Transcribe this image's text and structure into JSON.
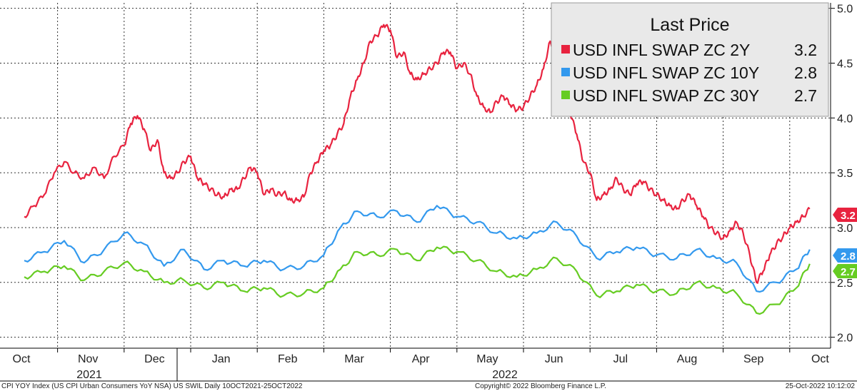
{
  "footer": {
    "left": "CPI YOY Index (US CPI Urban Consumers YoY NSA) US SWIL  Daily 10OCT2021-25OCT2022",
    "center": "Copyright© 2022 Bloomberg Finance L.P.",
    "right": "25-Oct-2022 10:12:02"
  },
  "chart_data": {
    "type": "line",
    "ylim": [
      1.9,
      5.05
    ],
    "yticks": [
      "2.0",
      "2.5",
      "3.0",
      "3.5",
      "4.0",
      "4.5",
      "5.0"
    ],
    "months": [
      "Oct",
      "Nov",
      "Dec",
      "Jan",
      "Feb",
      "Mar",
      "Apr",
      "May",
      "Jun",
      "Jul",
      "Aug",
      "Sep",
      "Oct"
    ],
    "years": [
      "2021",
      "2022"
    ],
    "grid": true,
    "legend": {
      "title": "Last Price",
      "placement": "top-right",
      "entries": [
        {
          "label": "USD INFL SWAP ZC 2Y",
          "value": "3.2"
        },
        {
          "label": "USD INFL SWAP ZC 10Y",
          "value": "2.8"
        },
        {
          "label": "USD INFL SWAP ZC 30Y",
          "value": "2.7"
        }
      ]
    },
    "last_value_tags": [
      "3.2",
      "2.8",
      "2.7"
    ],
    "series": [
      {
        "name": "USD INFL SWAP ZC 2Y",
        "color": "#e8233f",
        "points": [
          [
            0,
            3.1
          ],
          [
            0.15,
            3.2
          ],
          [
            0.3,
            3.3
          ],
          [
            0.45,
            3.5
          ],
          [
            0.6,
            3.6
          ],
          [
            0.75,
            3.5
          ],
          [
            0.9,
            3.45
          ],
          [
            1.05,
            3.55
          ],
          [
            1.2,
            3.45
          ],
          [
            1.35,
            3.65
          ],
          [
            1.5,
            3.75
          ],
          [
            1.6,
            3.95
          ],
          [
            1.7,
            4.02
          ],
          [
            1.8,
            3.9
          ],
          [
            1.9,
            3.7
          ],
          [
            2.0,
            3.8
          ],
          [
            2.1,
            3.5
          ],
          [
            2.2,
            3.45
          ],
          [
            2.3,
            3.5
          ],
          [
            2.4,
            3.6
          ],
          [
            2.5,
            3.65
          ],
          [
            2.6,
            3.45
          ],
          [
            2.7,
            3.4
          ],
          [
            2.8,
            3.35
          ],
          [
            2.9,
            3.3
          ],
          [
            3.0,
            3.28
          ],
          [
            3.1,
            3.35
          ],
          [
            3.2,
            3.35
          ],
          [
            3.3,
            3.45
          ],
          [
            3.4,
            3.55
          ],
          [
            3.5,
            3.5
          ],
          [
            3.6,
            3.3
          ],
          [
            3.7,
            3.35
          ],
          [
            3.8,
            3.3
          ],
          [
            3.9,
            3.32
          ],
          [
            4.0,
            3.25
          ],
          [
            4.1,
            3.25
          ],
          [
            4.2,
            3.28
          ],
          [
            4.3,
            3.5
          ],
          [
            4.4,
            3.6
          ],
          [
            4.5,
            3.7
          ],
          [
            4.6,
            3.75
          ],
          [
            4.7,
            3.85
          ],
          [
            4.8,
            3.95
          ],
          [
            4.9,
            4.2
          ],
          [
            5.0,
            4.35
          ],
          [
            5.1,
            4.5
          ],
          [
            5.2,
            4.7
          ],
          [
            5.3,
            4.75
          ],
          [
            5.4,
            4.85
          ],
          [
            5.5,
            4.8
          ],
          [
            5.6,
            4.55
          ],
          [
            5.7,
            4.6
          ],
          [
            5.8,
            4.4
          ],
          [
            5.9,
            4.35
          ],
          [
            6.0,
            4.4
          ],
          [
            6.1,
            4.45
          ],
          [
            6.2,
            4.5
          ],
          [
            6.3,
            4.6
          ],
          [
            6.4,
            4.6
          ],
          [
            6.5,
            4.45
          ],
          [
            6.6,
            4.5
          ],
          [
            6.7,
            4.4
          ],
          [
            6.8,
            4.2
          ],
          [
            6.9,
            4.1
          ],
          [
            7.0,
            4.05
          ],
          [
            7.1,
            4.15
          ],
          [
            7.2,
            4.2
          ],
          [
            7.3,
            4.12
          ],
          [
            7.4,
            4.07
          ],
          [
            7.5,
            4.1
          ],
          [
            7.6,
            4.2
          ],
          [
            7.7,
            4.3
          ],
          [
            7.8,
            4.45
          ],
          [
            7.9,
            4.7
          ],
          [
            8.0,
            4.55
          ],
          [
            8.1,
            4.3
          ],
          [
            8.2,
            4.05
          ],
          [
            8.3,
            3.85
          ],
          [
            8.4,
            3.6
          ],
          [
            8.5,
            3.5
          ],
          [
            8.6,
            3.25
          ],
          [
            8.7,
            3.3
          ],
          [
            8.8,
            3.35
          ],
          [
            8.9,
            3.45
          ],
          [
            9.0,
            3.35
          ],
          [
            9.1,
            3.3
          ],
          [
            9.2,
            3.4
          ],
          [
            9.3,
            3.42
          ],
          [
            9.4,
            3.35
          ],
          [
            9.5,
            3.3
          ],
          [
            9.6,
            3.25
          ],
          [
            9.7,
            3.2
          ],
          [
            9.8,
            3.17
          ],
          [
            9.9,
            3.25
          ],
          [
            10.0,
            3.3
          ],
          [
            10.1,
            3.2
          ],
          [
            10.2,
            3.1
          ],
          [
            10.3,
            3.0
          ],
          [
            10.4,
            2.95
          ],
          [
            10.5,
            2.9
          ],
          [
            10.6,
            2.97
          ],
          [
            10.7,
            3.05
          ],
          [
            10.8,
            2.95
          ],
          [
            10.9,
            2.75
          ],
          [
            11.0,
            2.5
          ],
          [
            11.1,
            2.6
          ],
          [
            11.2,
            2.75
          ],
          [
            11.3,
            2.85
          ],
          [
            11.4,
            2.92
          ],
          [
            11.5,
            3.0
          ],
          [
            11.6,
            3.05
          ],
          [
            11.7,
            3.1
          ],
          [
            11.8,
            3.17
          ]
        ]
      },
      {
        "name": "USD INFL SWAP ZC 10Y",
        "color": "#3399ee",
        "points": [
          [
            0,
            2.7
          ],
          [
            0.3,
            2.78
          ],
          [
            0.6,
            2.88
          ],
          [
            0.9,
            2.68
          ],
          [
            1.2,
            2.8
          ],
          [
            1.5,
            2.95
          ],
          [
            1.8,
            2.85
          ],
          [
            2.1,
            2.65
          ],
          [
            2.4,
            2.8
          ],
          [
            2.7,
            2.62
          ],
          [
            3.0,
            2.7
          ],
          [
            3.3,
            2.65
          ],
          [
            3.6,
            2.7
          ],
          [
            3.9,
            2.62
          ],
          [
            4.2,
            2.65
          ],
          [
            4.5,
            2.75
          ],
          [
            4.75,
            3.0
          ],
          [
            5.0,
            3.15
          ],
          [
            5.3,
            3.1
          ],
          [
            5.6,
            3.15
          ],
          [
            5.9,
            3.05
          ],
          [
            6.2,
            3.2
          ],
          [
            6.5,
            3.1
          ],
          [
            6.8,
            3.05
          ],
          [
            7.1,
            2.95
          ],
          [
            7.4,
            2.9
          ],
          [
            7.7,
            2.95
          ],
          [
            8.0,
            3.05
          ],
          [
            8.3,
            2.92
          ],
          [
            8.6,
            2.72
          ],
          [
            8.9,
            2.78
          ],
          [
            9.2,
            2.82
          ],
          [
            9.5,
            2.75
          ],
          [
            9.8,
            2.72
          ],
          [
            10.1,
            2.8
          ],
          [
            10.4,
            2.72
          ],
          [
            10.7,
            2.68
          ],
          [
            11.0,
            2.42
          ],
          [
            11.3,
            2.5
          ],
          [
            11.6,
            2.62
          ],
          [
            11.8,
            2.8
          ]
        ]
      },
      {
        "name": "USD INFL SWAP ZC 30Y",
        "color": "#66cc22",
        "points": [
          [
            0,
            2.55
          ],
          [
            0.3,
            2.6
          ],
          [
            0.6,
            2.65
          ],
          [
            0.9,
            2.52
          ],
          [
            1.2,
            2.6
          ],
          [
            1.5,
            2.68
          ],
          [
            1.8,
            2.6
          ],
          [
            2.1,
            2.5
          ],
          [
            2.4,
            2.52
          ],
          [
            2.7,
            2.45
          ],
          [
            3.0,
            2.5
          ],
          [
            3.3,
            2.42
          ],
          [
            3.6,
            2.45
          ],
          [
            3.9,
            2.38
          ],
          [
            4.2,
            2.4
          ],
          [
            4.5,
            2.45
          ],
          [
            4.75,
            2.62
          ],
          [
            5.0,
            2.78
          ],
          [
            5.3,
            2.75
          ],
          [
            5.6,
            2.8
          ],
          [
            5.9,
            2.7
          ],
          [
            6.2,
            2.82
          ],
          [
            6.5,
            2.78
          ],
          [
            6.8,
            2.7
          ],
          [
            7.1,
            2.6
          ],
          [
            7.4,
            2.55
          ],
          [
            7.7,
            2.62
          ],
          [
            8.0,
            2.72
          ],
          [
            8.3,
            2.6
          ],
          [
            8.6,
            2.38
          ],
          [
            8.9,
            2.42
          ],
          [
            9.2,
            2.48
          ],
          [
            9.5,
            2.42
          ],
          [
            9.8,
            2.4
          ],
          [
            10.1,
            2.5
          ],
          [
            10.4,
            2.45
          ],
          [
            10.7,
            2.4
          ],
          [
            11.0,
            2.22
          ],
          [
            11.3,
            2.3
          ],
          [
            11.6,
            2.45
          ],
          [
            11.8,
            2.67
          ]
        ]
      }
    ]
  }
}
